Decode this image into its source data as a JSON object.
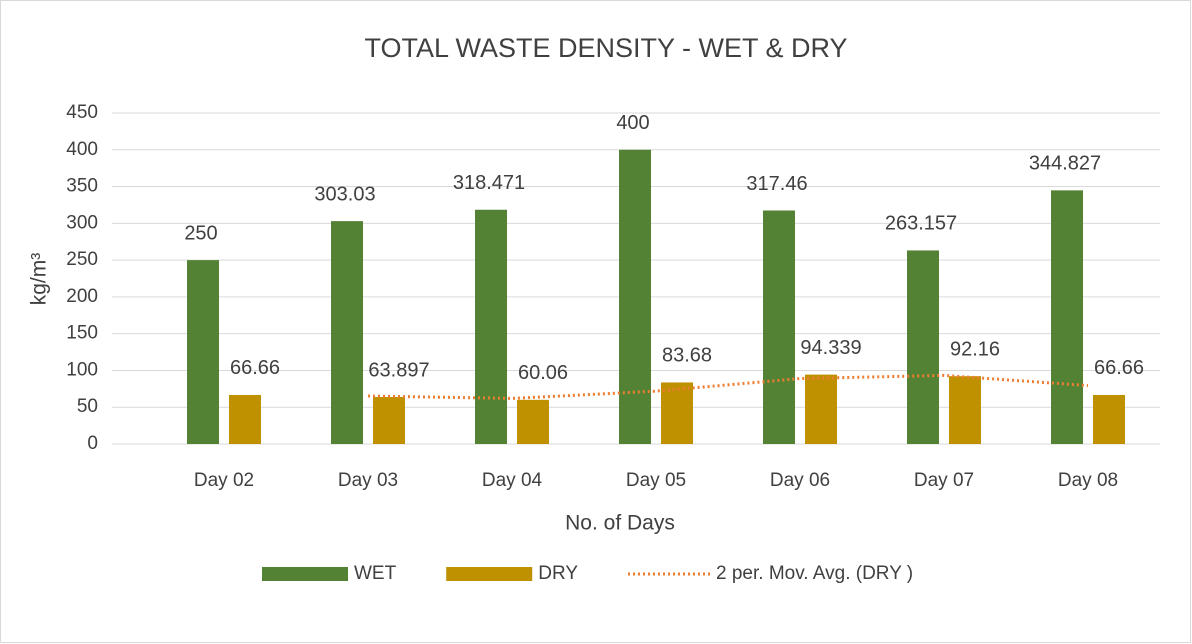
{
  "chart_data": {
    "type": "bar",
    "title": "TOTAL WASTE DENSITY - WET & DRY",
    "x_label": "No. of Days",
    "y_label": "kg/m³",
    "categories": [
      "Day 02",
      "Day 03",
      "Day 04",
      "Day 05",
      "Day 06",
      "Day 07",
      "Day 08"
    ],
    "series": [
      {
        "name": "WET",
        "color": "#548235",
        "values": [
          250,
          303.03,
          318.471,
          400,
          317.46,
          263.157,
          344.827
        ]
      },
      {
        "name": "DRY",
        "color": "#bf9000",
        "values": [
          66.66,
          63.897,
          60.06,
          83.68,
          94.339,
          92.16,
          66.66
        ]
      },
      {
        "name": "2 per. Mov. Avg. (DRY )",
        "color": "#ed7d31",
        "type": "line",
        "values": [
          null,
          65.28,
          61.98,
          71.87,
          89.01,
          93.25,
          79.41
        ]
      }
    ],
    "ylim": [
      0,
      450
    ],
    "yticks": [
      0,
      50,
      100,
      150,
      200,
      250,
      300,
      350,
      400,
      450
    ],
    "grid": true,
    "legend": "bottom"
  }
}
